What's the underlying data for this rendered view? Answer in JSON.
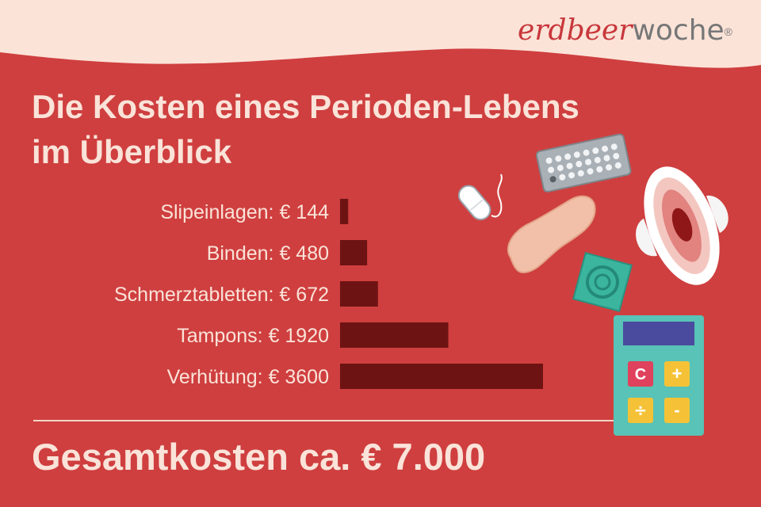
{
  "brand": {
    "part1": "erdbeer",
    "part2": "woche",
    "registered": "®"
  },
  "title": {
    "line1": "Die Kosten eines Perioden-Lebens",
    "line2": "im Überblick"
  },
  "chart_data": {
    "type": "bar",
    "orientation": "horizontal",
    "categories": [
      "Slipeinlagen",
      "Binden",
      "Schmerztabletten",
      "Tampons",
      "Verhütung"
    ],
    "labels": [
      "Slipeinlagen: € 144",
      "Binden: € 480",
      "Schmerztabletten: € 672",
      "Tampons: € 1920",
      "Verhütung: € 3600"
    ],
    "values": [
      144,
      480,
      672,
      1920,
      3600
    ],
    "xlim": [
      0,
      3600
    ],
    "grid": false,
    "bar_color": "#6e1313"
  },
  "total": "Gesamtkosten ca. € 7.000",
  "colors": {
    "background": "#cf3f3f",
    "header": "#fbe3d8",
    "text_light": "#fae3d9",
    "bar": "#6e1313"
  },
  "illustration_icons": [
    "calculator-icon",
    "pill-blister-icon",
    "tampon-icon",
    "panty-liner-icon",
    "pad-icon",
    "condom-icon"
  ]
}
